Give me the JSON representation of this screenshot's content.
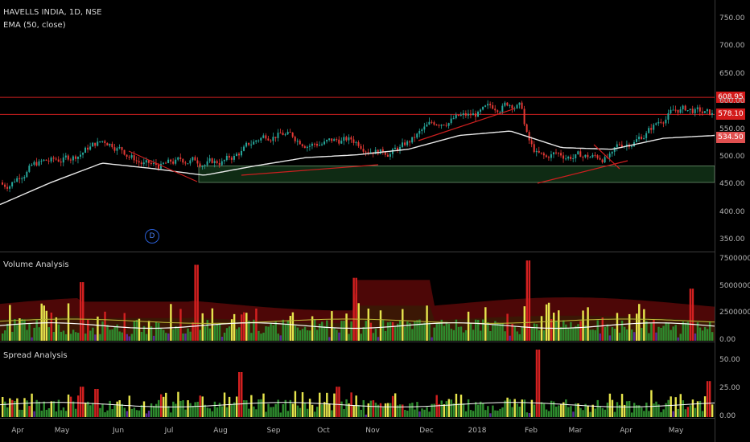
{
  "chart_header": {
    "title": "HAVELLS INDIA, 1D, NSE",
    "indicator": "EMA (50, close)",
    "event_marker": "D"
  },
  "colors": {
    "up": "#26a69a",
    "down": "#e53935",
    "ema": "#e8e8e8",
    "line_red": "#cc1f1f",
    "zone": "#0f2b14",
    "vol_band_fill": "#5a0808",
    "vol_bar_green": "#2e8b2e",
    "vol_bar_yellow": "#e6e44c",
    "vol_bar_red": "#d32020",
    "vol_bar_purple": "#5b2a9b",
    "spread_bar_green": "#2e8b2e"
  },
  "chart_data": [
    {
      "type": "candlestick",
      "title": "HAVELLS INDIA, 1D, NSE",
      "x_ticks": [
        "Apr",
        "May",
        "Jun",
        "Jul",
        "Aug",
        "Sep",
        "Oct",
        "Nov",
        "Dec",
        "2018",
        "Feb",
        "Mar",
        "Apr",
        "May"
      ],
      "y_ticks": [
        "750.00",
        "700.00",
        "650.00",
        "600.00",
        "550.00",
        "500.00",
        "450.00",
        "400.00",
        "350.00"
      ],
      "ylim": [
        330,
        785
      ],
      "series": [
        {
          "name": "EMA (50, close)",
          "approx_values_by_month": [
            415,
            455,
            490,
            480,
            468,
            485,
            500,
            505,
            515,
            540,
            548,
            518,
            515,
            535,
            540
          ]
        }
      ],
      "horizontal_levels": [
        {
          "label": "608.95",
          "value": 608.95,
          "color": "#cc1f1f"
        },
        {
          "label": "578.10",
          "value": 578.1,
          "color": "#cc1f1f"
        }
      ],
      "last_price_label": "534.50",
      "support_zone": [
        455,
        485
      ]
    },
    {
      "type": "bar",
      "title": "Volume Analysis",
      "y_ticks": [
        "7500000.00",
        "5000000.00",
        "2500000.00",
        "0.00"
      ],
      "ylim": [
        0,
        8000000
      ]
    },
    {
      "type": "bar",
      "title": "Spread Analysis",
      "y_ticks": [
        "50.00",
        "25.00",
        "0.00"
      ],
      "ylim": [
        0,
        65
      ]
    }
  ]
}
